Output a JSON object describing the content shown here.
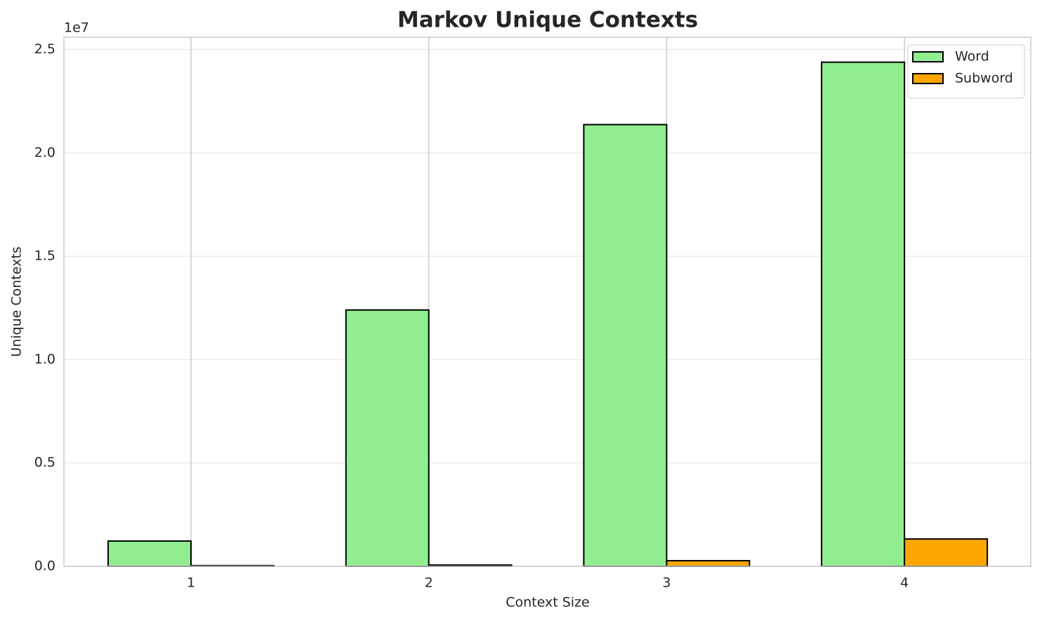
{
  "chart_data": {
    "type": "bar",
    "title": "Markov Unique Contexts",
    "x_label": "Context Size",
    "y_label": "Unique Contexts",
    "y_offset_label": "1e7",
    "categories": [
      "1",
      "2",
      "3",
      "4"
    ],
    "series": [
      {
        "name": "Word",
        "color": "#90ee90",
        "values": [
          1220000,
          12400000,
          21370000,
          24390000
        ]
      },
      {
        "name": "Subword",
        "color": "#ffa500",
        "values": [
          30000,
          60000,
          270000,
          1320000
        ]
      }
    ],
    "ylim": [
      0,
      25600000
    ],
    "yticks": [
      {
        "value": 0,
        "label": "0.0"
      },
      {
        "value": 5000000,
        "label": "0.5"
      },
      {
        "value": 10000000,
        "label": "1.0"
      },
      {
        "value": 15000000,
        "label": "1.5"
      },
      {
        "value": 20000000,
        "label": "2.0"
      },
      {
        "value": 25000000,
        "label": "2.5"
      }
    ],
    "grid": true,
    "legend": "upper right"
  }
}
